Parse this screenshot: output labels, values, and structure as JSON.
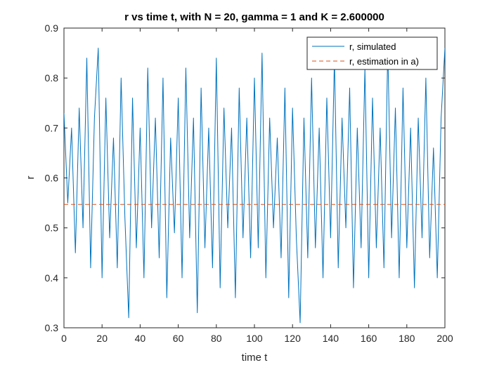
{
  "chart_data": {
    "type": "line",
    "title": "r vs time t, with N = 20, gamma = 1 and K = 2.600000",
    "xlabel": "time t",
    "ylabel": "r",
    "xlim": [
      0,
      200
    ],
    "ylim": [
      0.3,
      0.9
    ],
    "xticks": [
      "0",
      "20",
      "40",
      "60",
      "80",
      "100",
      "120",
      "140",
      "160",
      "180",
      "200"
    ],
    "yticks": [
      "0.3",
      "0.4",
      "0.5",
      "0.6",
      "0.7",
      "0.8",
      "0.9"
    ],
    "grid": false,
    "legend_position": "top-right",
    "series": [
      {
        "name": "r, simulated",
        "style": "solid",
        "color": "#0072BD",
        "x": [
          0,
          2,
          4,
          6,
          8,
          10,
          12,
          14,
          16,
          18,
          20,
          22,
          24,
          26,
          28,
          30,
          32,
          34,
          36,
          38,
          40,
          42,
          44,
          46,
          48,
          50,
          52,
          54,
          56,
          58,
          60,
          62,
          64,
          66,
          68,
          70,
          72,
          74,
          76,
          78,
          80,
          82,
          84,
          86,
          88,
          90,
          92,
          94,
          96,
          98,
          100,
          102,
          104,
          106,
          108,
          110,
          112,
          114,
          116,
          118,
          120,
          122,
          124,
          126,
          128,
          130,
          132,
          134,
          136,
          138,
          140,
          142,
          144,
          146,
          148,
          150,
          152,
          154,
          156,
          158,
          160,
          162,
          164,
          166,
          168,
          170,
          172,
          174,
          176,
          178,
          180,
          182,
          184,
          186,
          188,
          190,
          192,
          194,
          196,
          198,
          200
        ],
        "values": [
          0.73,
          0.55,
          0.7,
          0.45,
          0.74,
          0.5,
          0.84,
          0.42,
          0.72,
          0.86,
          0.4,
          0.76,
          0.48,
          0.68,
          0.42,
          0.8,
          0.52,
          0.32,
          0.76,
          0.46,
          0.7,
          0.4,
          0.82,
          0.5,
          0.72,
          0.44,
          0.8,
          0.36,
          0.68,
          0.49,
          0.76,
          0.4,
          0.82,
          0.48,
          0.72,
          0.33,
          0.78,
          0.46,
          0.7,
          0.42,
          0.84,
          0.38,
          0.74,
          0.5,
          0.7,
          0.36,
          0.78,
          0.48,
          0.72,
          0.44,
          0.8,
          0.46,
          0.85,
          0.4,
          0.72,
          0.5,
          0.68,
          0.44,
          0.78,
          0.36,
          0.74,
          0.48,
          0.31,
          0.72,
          0.44,
          0.8,
          0.46,
          0.7,
          0.4,
          0.76,
          0.48,
          0.84,
          0.42,
          0.72,
          0.5,
          0.78,
          0.38,
          0.7,
          0.46,
          0.82,
          0.4,
          0.76,
          0.46,
          0.7,
          0.42,
          0.86,
          0.48,
          0.74,
          0.4,
          0.78,
          0.46,
          0.7,
          0.38,
          0.72,
          0.48,
          0.8,
          0.44,
          0.66,
          0.4,
          0.72,
          0.86
        ]
      },
      {
        "name": "r, estimation in a)",
        "style": "dashed",
        "color": "#D95319",
        "x": [
          0,
          200
        ],
        "values": [
          0.547,
          0.547
        ]
      }
    ]
  }
}
